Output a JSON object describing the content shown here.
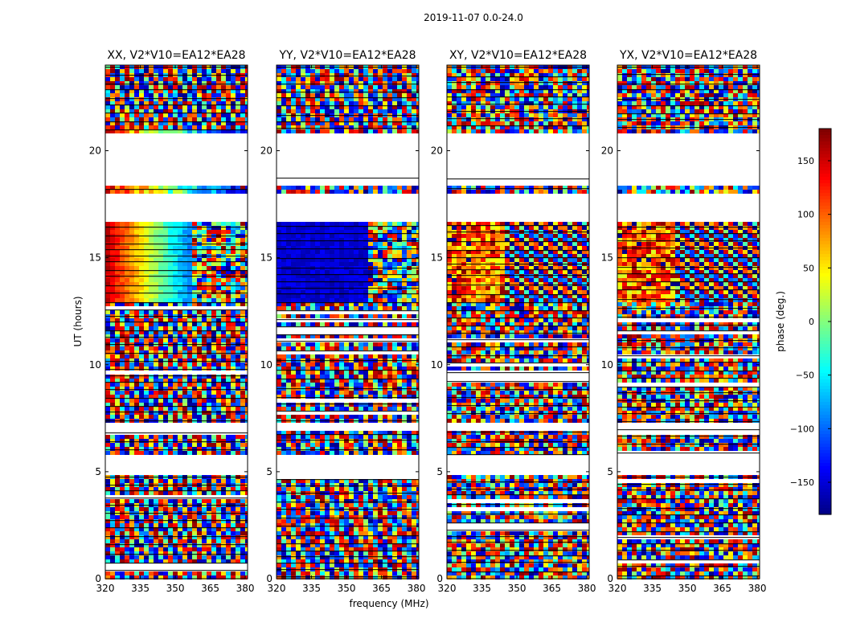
{
  "suptitle": "2019-11-07 0.0-24.0",
  "chart_data": {
    "type": "heatmap",
    "x": {
      "label": "frequency (MHz)",
      "range": [
        320,
        381
      ],
      "ticks": [
        320,
        335,
        350,
        365,
        380
      ]
    },
    "y": {
      "label": "UT (hours)",
      "range": [
        0,
        24
      ],
      "ticks": [
        0,
        5,
        10,
        15,
        20
      ]
    },
    "colorbar": {
      "label": "phase (deg.)",
      "range": [
        -180,
        180
      ],
      "ticks": [
        -150,
        -100,
        -50,
        0,
        50,
        100,
        150
      ],
      "tick_labels": [
        "−150",
        "−100",
        "−50",
        "0",
        "50",
        "100",
        "150"
      ],
      "colormap": "jet"
    },
    "panels": [
      {
        "title": "XX, V2*V10=EA12*EA28",
        "ytick_labels": [
          "0",
          "5",
          "10",
          "15",
          "20"
        ],
        "pattern": "gradient"
      },
      {
        "title": "YY, V2*V10=EA12*EA28",
        "ytick_labels": [
          "0",
          "5",
          "10",
          "15",
          "20"
        ],
        "pattern": "blue"
      },
      {
        "title": "XY, V2*V10=EA12*EA28",
        "ytick_labels": [
          "0",
          "5",
          "10",
          "15",
          "20"
        ],
        "pattern": "noisy"
      },
      {
        "title": "YX, V2*V10=EA12*EA28",
        "ytick_labels": [
          "0",
          "5",
          "10",
          "15",
          "20"
        ],
        "pattern": "noisy"
      }
    ],
    "data_gaps_hours": [
      [
        4.9,
        5.8
      ],
      [
        7.0,
        7.3
      ],
      [
        16.7,
        18.05
      ],
      [
        18.3,
        18.7
      ],
      [
        18.8,
        20.9
      ]
    ],
    "xtick_labels": [
      "320",
      "335",
      "350",
      "365",
      "380"
    ],
    "colorbar_tick_labels": [
      "−150",
      "−100",
      "−50",
      "0",
      "50",
      "100",
      "150"
    ]
  }
}
